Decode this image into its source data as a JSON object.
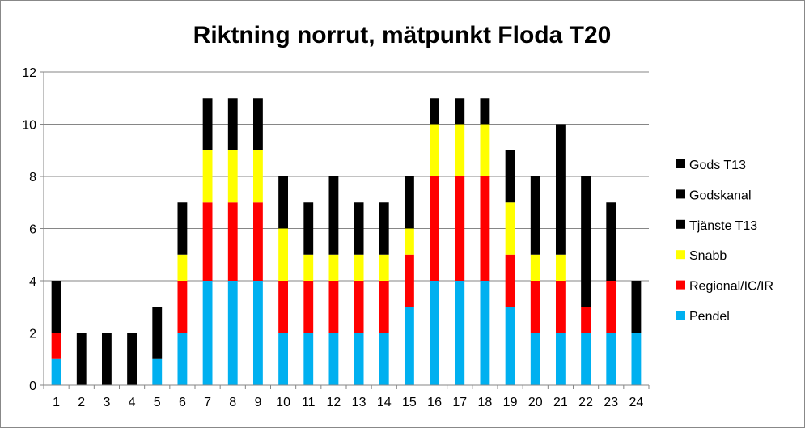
{
  "chart_data": {
    "type": "bar",
    "stacked": true,
    "title": "Riktning norrut, mätpunkt Floda T20",
    "xlabel": "",
    "ylabel": "",
    "ylim": [
      0,
      12
    ],
    "yticks": [
      0,
      2,
      4,
      6,
      8,
      10,
      12
    ],
    "grid": true,
    "legend_position": "right",
    "categories": [
      "1",
      "2",
      "3",
      "4",
      "5",
      "6",
      "7",
      "8",
      "9",
      "10",
      "11",
      "12",
      "13",
      "14",
      "15",
      "16",
      "17",
      "18",
      "19",
      "20",
      "21",
      "22",
      "23",
      "24"
    ],
    "series": [
      {
        "name": "Pendel",
        "color": "#00B0F0",
        "values": [
          1,
          0,
          0,
          0,
          1,
          2,
          4,
          4,
          4,
          2,
          2,
          2,
          2,
          2,
          3,
          4,
          4,
          4,
          3,
          2,
          2,
          2,
          2,
          2
        ]
      },
      {
        "name": "Regional/IC/IR",
        "color": "#FF0000",
        "values": [
          1,
          0,
          0,
          0,
          0,
          2,
          3,
          3,
          3,
          2,
          2,
          2,
          2,
          2,
          2,
          4,
          4,
          4,
          2,
          2,
          2,
          1,
          2,
          0
        ]
      },
      {
        "name": "Snabb",
        "color": "#FFFF00",
        "values": [
          0,
          0,
          0,
          0,
          0,
          1,
          2,
          2,
          2,
          2,
          1,
          1,
          1,
          1,
          1,
          2,
          2,
          2,
          2,
          1,
          1,
          0,
          0,
          0
        ]
      },
      {
        "name": "Tjänste T13",
        "color": "#000000",
        "values": [
          0,
          0,
          0,
          0,
          0,
          0,
          0,
          0,
          0,
          0,
          0,
          0,
          0,
          0,
          0,
          0,
          0,
          0,
          0,
          0,
          0,
          0,
          0,
          0
        ]
      },
      {
        "name": "Godskanal",
        "color": "#000000",
        "values": [
          2,
          2,
          2,
          2,
          2,
          2,
          2,
          2,
          2,
          2,
          2,
          3,
          2,
          2,
          2,
          1,
          1,
          1,
          2,
          3,
          5,
          5,
          3,
          2
        ]
      },
      {
        "name": "Gods T13",
        "color": "#000000",
        "values": [
          0,
          0,
          0,
          0,
          0,
          0,
          0,
          0,
          0,
          0,
          0,
          0,
          0,
          0,
          0,
          0,
          0,
          0,
          0,
          0,
          0,
          0,
          0,
          0
        ]
      }
    ]
  }
}
